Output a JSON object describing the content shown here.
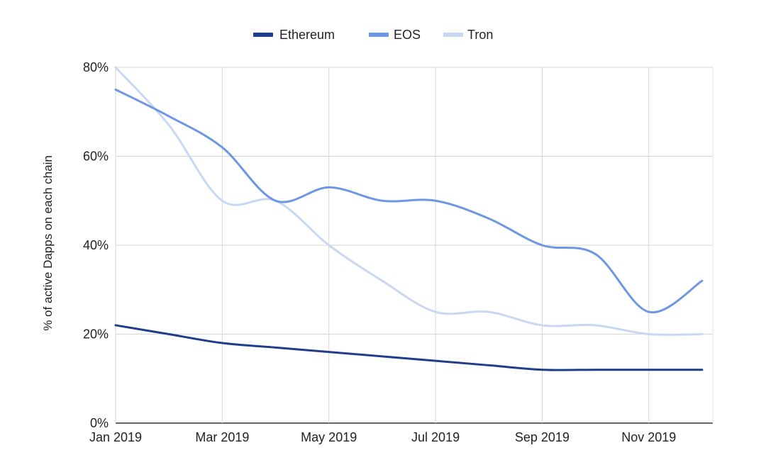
{
  "chart_data": {
    "type": "line",
    "title": "",
    "xlabel": "",
    "ylabel": "% of active Dapps on each chain",
    "x": [
      "2019-01",
      "2019-02",
      "2019-03",
      "2019-04",
      "2019-05",
      "2019-06",
      "2019-07",
      "2019-08",
      "2019-09",
      "2019-10",
      "2019-11",
      "2019-12"
    ],
    "x_tick_labels": [
      "Jan 2019",
      "Mar 2019",
      "May 2019",
      "Jul 2019",
      "Sep 2019",
      "Nov 2019"
    ],
    "y_ticks": [
      "0%",
      "20%",
      "40%",
      "60%",
      "80%"
    ],
    "ylim": [
      0,
      80
    ],
    "grid": true,
    "legend_position": "top-center",
    "series": [
      {
        "name": "Ethereum",
        "color": "#1f3d8a",
        "values": [
          22,
          20,
          18,
          17,
          16,
          15,
          14,
          13,
          12,
          12,
          12,
          12
        ]
      },
      {
        "name": "EOS",
        "color": "#6e97e3",
        "values": [
          75,
          69,
          62,
          50,
          53,
          50,
          50,
          46,
          40,
          38,
          25,
          32
        ]
      },
      {
        "name": "Tron",
        "color": "#c8d8f3",
        "values": [
          80,
          67,
          50,
          50,
          40,
          32,
          25,
          25,
          22,
          22,
          20,
          20
        ]
      }
    ]
  }
}
